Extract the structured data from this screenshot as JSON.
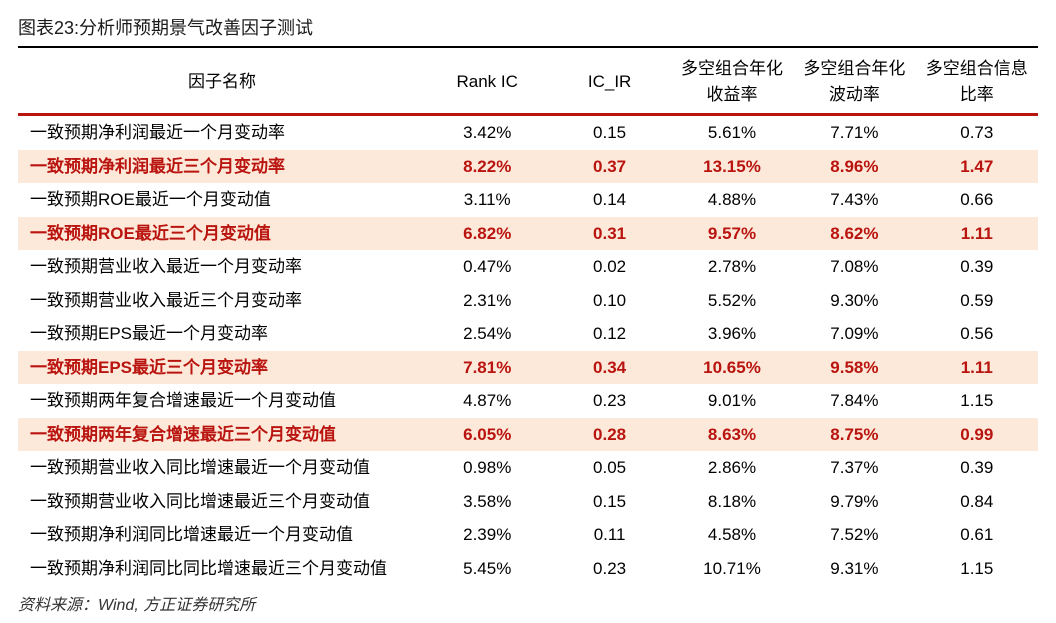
{
  "title": "图表23:分析师预期景气改善因子测试",
  "source": "资料来源：Wind, 方正证券研究所",
  "colors": {
    "highlight_text": "#b9140f",
    "highlight_bg": "#fde9d9",
    "rule": "#b9140f",
    "text": "#000000",
    "bg": "#ffffff"
  },
  "columns": [
    "因子名称",
    "Rank IC",
    "IC_IR",
    "多空组合年化收益率",
    "多空组合年化波动率",
    "多空组合信息比率"
  ],
  "rows": [
    {
      "name": "一致预期净利润最近一个月变动率",
      "rank_ic": "3.42%",
      "ic_ir": "0.15",
      "ls_ret": "5.61%",
      "ls_vol": "7.71%",
      "info_ratio": "0.73",
      "hl": false
    },
    {
      "name": "一致预期净利润最近三个月变动率",
      "rank_ic": "8.22%",
      "ic_ir": "0.37",
      "ls_ret": "13.15%",
      "ls_vol": "8.96%",
      "info_ratio": "1.47",
      "hl": true
    },
    {
      "name": "一致预期ROE最近一个月变动值",
      "rank_ic": "3.11%",
      "ic_ir": "0.14",
      "ls_ret": "4.88%",
      "ls_vol": "7.43%",
      "info_ratio": "0.66",
      "hl": false
    },
    {
      "name": "一致预期ROE最近三个月变动值",
      "rank_ic": "6.82%",
      "ic_ir": "0.31",
      "ls_ret": "9.57%",
      "ls_vol": "8.62%",
      "info_ratio": "1.11",
      "hl": true
    },
    {
      "name": "一致预期营业收入最近一个月变动率",
      "rank_ic": "0.47%",
      "ic_ir": "0.02",
      "ls_ret": "2.78%",
      "ls_vol": "7.08%",
      "info_ratio": "0.39",
      "hl": false
    },
    {
      "name": "一致预期营业收入最近三个月变动率",
      "rank_ic": "2.31%",
      "ic_ir": "0.10",
      "ls_ret": "5.52%",
      "ls_vol": "9.30%",
      "info_ratio": "0.59",
      "hl": false
    },
    {
      "name": "一致预期EPS最近一个月变动率",
      "rank_ic": "2.54%",
      "ic_ir": "0.12",
      "ls_ret": "3.96%",
      "ls_vol": "7.09%",
      "info_ratio": "0.56",
      "hl": false
    },
    {
      "name": "一致预期EPS最近三个月变动率",
      "rank_ic": "7.81%",
      "ic_ir": "0.34",
      "ls_ret": "10.65%",
      "ls_vol": "9.58%",
      "info_ratio": "1.11",
      "hl": true
    },
    {
      "name": "一致预期两年复合增速最近一个月变动值",
      "rank_ic": "4.87%",
      "ic_ir": "0.23",
      "ls_ret": "9.01%",
      "ls_vol": "7.84%",
      "info_ratio": "1.15",
      "hl": false
    },
    {
      "name": "一致预期两年复合增速最近三个月变动值",
      "rank_ic": "6.05%",
      "ic_ir": "0.28",
      "ls_ret": "8.63%",
      "ls_vol": "8.75%",
      "info_ratio": "0.99",
      "hl": true
    },
    {
      "name": "一致预期营业收入同比增速最近一个月变动值",
      "rank_ic": "0.98%",
      "ic_ir": "0.05",
      "ls_ret": "2.86%",
      "ls_vol": "7.37%",
      "info_ratio": "0.39",
      "hl": false
    },
    {
      "name": "一致预期营业收入同比增速最近三个月变动值",
      "rank_ic": "3.58%",
      "ic_ir": "0.15",
      "ls_ret": "8.18%",
      "ls_vol": "9.79%",
      "info_ratio": "0.84",
      "hl": false
    },
    {
      "name": "一致预期净利润同比增速最近一个月变动值",
      "rank_ic": "2.39%",
      "ic_ir": "0.11",
      "ls_ret": "4.58%",
      "ls_vol": "7.52%",
      "info_ratio": "0.61",
      "hl": false
    },
    {
      "name": "一致预期净利润同比同比增速最近三个月变动值",
      "rank_ic": "5.45%",
      "ic_ir": "0.23",
      "ls_ret": "10.71%",
      "ls_vol": "9.31%",
      "info_ratio": "1.15",
      "hl": false
    }
  ]
}
